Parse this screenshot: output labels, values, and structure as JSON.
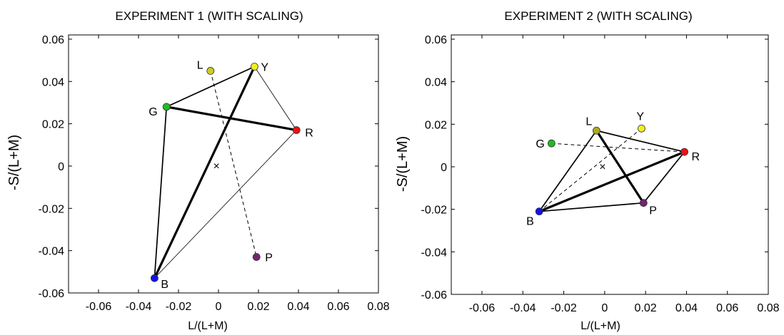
{
  "chart_data": [
    {
      "type": "scatter",
      "title": "EXPERIMENT 1 (WITH SCALING)",
      "xlabel": "L/(L+M)",
      "ylabel": "-S/(L+M)",
      "xlim": [
        -0.075,
        0.08
      ],
      "ylim": [
        -0.06,
        0.062
      ],
      "xticks": [
        -0.06,
        -0.04,
        -0.02,
        0,
        0.02,
        0.04,
        0.06,
        0.08
      ],
      "xtick_labels": [
        "-0.06",
        "-0.04",
        "-0.02",
        "0",
        "0.02",
        "0.04",
        "0.06",
        "0.08"
      ],
      "yticks": [
        -0.06,
        -0.04,
        -0.02,
        0,
        0.02,
        0.04,
        0.06
      ],
      "ytick_labels": [
        "-0.06",
        "-0.04",
        "-0.02",
        "0",
        "0.02",
        "0.04",
        "0.06"
      ],
      "grid": false,
      "points": [
        {
          "label": "L",
          "x": -0.004,
          "y": 0.045,
          "color": "#cccc22"
        },
        {
          "label": "Y",
          "x": 0.018,
          "y": 0.047,
          "color": "#eeee22"
        },
        {
          "label": "G",
          "x": -0.026,
          "y": 0.028,
          "color": "#22bb22"
        },
        {
          "label": "R",
          "x": 0.039,
          "y": 0.017,
          "color": "#ee1111"
        },
        {
          "label": "B",
          "x": -0.032,
          "y": -0.053,
          "color": "#1111ee"
        },
        {
          "label": "P",
          "x": 0.019,
          "y": -0.043,
          "color": "#772277"
        }
      ],
      "center": {
        "label": "×",
        "x": -0.001,
        "y": 0.0
      },
      "lines": [
        {
          "from": "Y",
          "to": "B",
          "style": "thick"
        },
        {
          "from": "G",
          "to": "R",
          "style": "thick"
        },
        {
          "from": "G",
          "to": "Y",
          "style": "medium"
        },
        {
          "from": "G",
          "to": "B",
          "style": "medium"
        },
        {
          "from": "Y",
          "to": "R",
          "style": "thin"
        },
        {
          "from": "R",
          "to": "B",
          "style": "thin"
        },
        {
          "from": "L",
          "to": "P",
          "style": "dashed"
        }
      ]
    },
    {
      "type": "scatter",
      "title": "EXPERIMENT 2 (WITH SCALING)",
      "xlabel": "L/(L+M)",
      "ylabel": "-S/(L+M)",
      "xlim": [
        -0.075,
        0.08
      ],
      "ylim": [
        -0.06,
        0.062
      ],
      "xticks": [
        -0.06,
        -0.04,
        -0.02,
        0,
        0.02,
        0.04,
        0.06,
        0.08
      ],
      "xtick_labels": [
        "-0.06",
        "-0.04",
        "-0.02",
        "0",
        "0.02",
        "0.04",
        "0.06",
        "0.08"
      ],
      "yticks": [
        -0.06,
        -0.04,
        -0.02,
        0,
        0.02,
        0.04,
        0.06
      ],
      "ytick_labels": [
        "-0.06",
        "-0.04",
        "-0.02",
        "0",
        "0.02",
        "0.04",
        "0.06"
      ],
      "grid": false,
      "points": [
        {
          "label": "L",
          "x": -0.004,
          "y": 0.017,
          "color": "#aaaa22"
        },
        {
          "label": "Y",
          "x": 0.018,
          "y": 0.018,
          "color": "#eeee22"
        },
        {
          "label": "G",
          "x": -0.026,
          "y": 0.011,
          "color": "#22bb22"
        },
        {
          "label": "R",
          "x": 0.039,
          "y": 0.007,
          "color": "#ee1111"
        },
        {
          "label": "B",
          "x": -0.032,
          "y": -0.021,
          "color": "#1111ee"
        },
        {
          "label": "P",
          "x": 0.019,
          "y": -0.017,
          "color": "#772277"
        }
      ],
      "center": {
        "label": "×",
        "x": -0.001,
        "y": 0.0
      },
      "lines": [
        {
          "from": "B",
          "to": "R",
          "style": "thick"
        },
        {
          "from": "L",
          "to": "P",
          "style": "thick"
        },
        {
          "from": "B",
          "to": "L",
          "style": "medium"
        },
        {
          "from": "L",
          "to": "R",
          "style": "medium"
        },
        {
          "from": "R",
          "to": "P",
          "style": "medium"
        },
        {
          "from": "P",
          "to": "B",
          "style": "medium"
        },
        {
          "from": "G",
          "to": "R",
          "style": "dashed"
        },
        {
          "from": "B",
          "to": "Y",
          "style": "dashed"
        }
      ]
    }
  ]
}
